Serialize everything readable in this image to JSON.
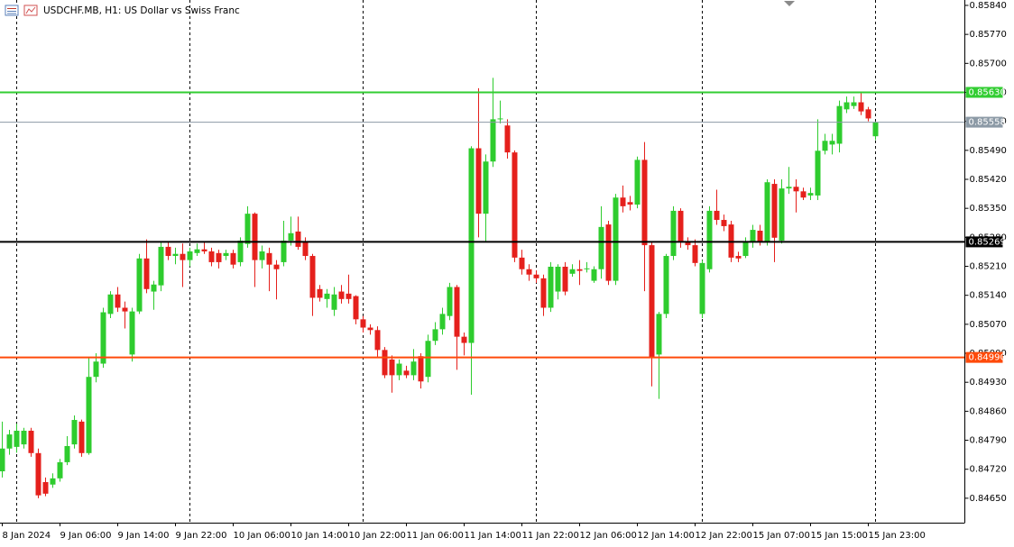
{
  "chart_data": {
    "type": "candlestick",
    "title": "USDCHF.MB, H1:  US Dollar vs Swiss Franc",
    "up_color": "#2ecc2e",
    "down_color": "#e5201c",
    "categories": [
      "8 Jan 2024",
      null,
      null,
      null,
      null,
      null,
      null,
      null,
      "9 Jan 06:00",
      null,
      null,
      null,
      null,
      null,
      null,
      null,
      "9 Jan 14:00",
      null,
      null,
      null,
      null,
      null,
      null,
      null,
      "9 Jan 22:00",
      null,
      null,
      null,
      null,
      null,
      null,
      null,
      "10 Jan 06:00",
      null,
      null,
      null,
      null,
      null,
      null,
      null,
      "10 Jan 14:00",
      null,
      null,
      null,
      null,
      null,
      null,
      null,
      "10 Jan 22:00",
      null,
      null,
      null,
      null,
      null,
      null,
      null,
      "11 Jan 06:00",
      null,
      null,
      null,
      null,
      null,
      null,
      null,
      "11 Jan 14:00",
      null,
      null,
      null,
      null,
      null,
      null,
      null,
      "11 Jan 22:00",
      null,
      null,
      null,
      null,
      null,
      null,
      null,
      "12 Jan 06:00",
      null,
      null,
      null,
      null,
      null,
      null,
      null,
      "12 Jan 14:00",
      null,
      null,
      null,
      null,
      null,
      null,
      null,
      "12 Jan 22:00",
      null,
      null,
      null,
      null,
      null,
      null,
      null,
      "15 Jan 07:00",
      null,
      null,
      null,
      null,
      null,
      null,
      null,
      "15 Jan 15:00",
      null,
      null,
      null,
      null,
      null,
      null,
      null,
      "15 Jan 23:00",
      null
    ],
    "open": [
      0.84715,
      0.8477,
      0.84774,
      0.8478,
      0.84813,
      0.84759,
      0.84689,
      0.84683,
      0.84698,
      0.84737,
      0.8478,
      0.84835,
      0.84759,
      0.84943,
      0.84975,
      0.85095,
      0.85142,
      0.8511,
      0.84997,
      0.85101,
      0.85229,
      0.85149,
      0.85164,
      0.85257,
      0.85235,
      0.8524,
      0.85225,
      0.85242,
      0.85251,
      0.85246,
      0.85242,
      0.85235,
      0.85242,
      0.8522,
      0.85264,
      0.85337,
      0.85225,
      0.85242,
      0.85214,
      0.8522,
      0.85272,
      0.85294,
      0.85268,
      0.85235,
      0.85155,
      0.85131,
      0.85105,
      0.85149,
      0.85144,
      0.85138,
      0.85082,
      0.85062,
      0.85056,
      0.85008,
      0.84985,
      0.84947,
      0.84958,
      0.84947,
      0.84993,
      0.84943,
      0.8503,
      0.85058,
      0.8509,
      0.8516,
      0.8504,
      0.85025,
      0.85495,
      0.85337,
      0.85463,
      0.85565,
      0.8555,
      0.85485,
      0.85231,
      0.85203,
      0.8519,
      0.85181,
      0.8511,
      0.85149,
      0.85209,
      0.85192,
      0.85203,
      0.85203,
      0.85175,
      0.85203,
      0.85311,
      0.85175,
      0.85376,
      0.85365,
      0.85359,
      0.85467,
      0.85261,
      0.84997,
      0.85095,
      0.85235,
      0.85344,
      0.85268,
      0.85261,
      0.85095,
      0.85203,
      0.85344,
      0.85322,
      0.85311,
      0.85235,
      0.85235,
      0.85268,
      0.85296,
      0.85268,
      0.85409,
      0.85272,
      0.85398,
      0.85402,
      0.85391,
      0.85381,
      0.85381,
      0.85489,
      0.85504,
      0.85506,
      0.85589,
      0.85597,
      0.85606,
      0.85589,
      0.85524
    ],
    "high": [
      0.84835,
      0.84815,
      0.8483,
      0.8482,
      0.8482,
      0.8477,
      0.847,
      0.8471,
      0.84745,
      0.848,
      0.8485,
      0.8484,
      0.8499,
      0.85,
      0.8511,
      0.8515,
      0.8516,
      0.85125,
      0.8511,
      0.8524,
      0.85275,
      0.85175,
      0.8527,
      0.8527,
      0.85255,
      0.85265,
      0.85255,
      0.85265,
      0.8527,
      0.85255,
      0.8525,
      0.8525,
      0.8525,
      0.8528,
      0.85355,
      0.8534,
      0.8526,
      0.85255,
      0.85225,
      0.8532,
      0.8533,
      0.8533,
      0.8528,
      0.8524,
      0.85165,
      0.85155,
      0.8516,
      0.85165,
      0.8519,
      0.8514,
      0.8509,
      0.8507,
      0.85065,
      0.85015,
      0.84995,
      0.84985,
      0.8497,
      0.8501,
      0.85,
      0.85045,
      0.85075,
      0.8511,
      0.8517,
      0.85165,
      0.8505,
      0.855,
      0.8564,
      0.8548,
      0.85665,
      0.8561,
      0.85565,
      0.8549,
      0.8525,
      0.85215,
      0.852,
      0.8519,
      0.8522,
      0.85215,
      0.8522,
      0.85215,
      0.85225,
      0.8522,
      0.8521,
      0.85355,
      0.8532,
      0.85385,
      0.85405,
      0.8538,
      0.85475,
      0.8551,
      0.8527,
      0.851,
      0.8524,
      0.85355,
      0.8535,
      0.8528,
      0.85275,
      0.85225,
      0.85355,
      0.85395,
      0.85335,
      0.8532,
      0.85245,
      0.8528,
      0.8531,
      0.8531,
      0.8542,
      0.8542,
      0.8542,
      0.8545,
      0.8542,
      0.854,
      0.854,
      0.85565,
      0.8553,
      0.8553,
      0.8561,
      0.8562,
      0.8562,
      0.8563,
      0.85595,
      0.8556
    ],
    "low": [
      0.847,
      0.84755,
      0.8476,
      0.8477,
      0.8475,
      0.8465,
      0.84655,
      0.84675,
      0.8469,
      0.8473,
      0.8477,
      0.8475,
      0.84755,
      0.8493,
      0.84965,
      0.85085,
      0.851,
      0.8506,
      0.8498,
      0.85095,
      0.85145,
      0.85105,
      0.8515,
      0.85225,
      0.85215,
      0.8516,
      0.8521,
      0.85235,
      0.8524,
      0.8521,
      0.85205,
      0.85225,
      0.85205,
      0.8521,
      0.85255,
      0.8516,
      0.85205,
      0.8515,
      0.8513,
      0.8521,
      0.8526,
      0.8525,
      0.85225,
      0.8509,
      0.85125,
      0.8511,
      0.8509,
      0.8512,
      0.8512,
      0.8507,
      0.8505,
      0.85045,
      0.8499,
      0.8494,
      0.84905,
      0.84935,
      0.8494,
      0.84935,
      0.84915,
      0.8493,
      0.8502,
      0.85045,
      0.8508,
      0.8496,
      0.84995,
      0.849,
      0.8528,
      0.8527,
      0.8545,
      0.85555,
      0.8547,
      0.8522,
      0.8519,
      0.85175,
      0.8517,
      0.8509,
      0.851,
      0.8513,
      0.8514,
      0.85185,
      0.85165,
      0.85195,
      0.8517,
      0.8518,
      0.85165,
      0.85165,
      0.8534,
      0.85345,
      0.8535,
      0.8515,
      0.8492,
      0.8489,
      0.85085,
      0.85225,
      0.85255,
      0.8525,
      0.8521,
      0.85085,
      0.85195,
      0.8531,
      0.85295,
      0.8522,
      0.8522,
      0.8523,
      0.85255,
      0.8526,
      0.8526,
      0.8522,
      0.85265,
      0.85385,
      0.8534,
      0.8537,
      0.8537,
      0.8537,
      0.8548,
      0.8548,
      0.85485,
      0.8558,
      0.8559,
      0.85575,
      0.8556,
      0.85515
    ],
    "close": [
      0.8477,
      0.84804,
      0.84813,
      0.84813,
      0.84759,
      0.84657,
      0.84661,
      0.84698,
      0.84737,
      0.84776,
      0.84839,
      0.84759,
      0.84943,
      0.8498,
      0.85099,
      0.85142,
      0.8511,
      0.85101,
      0.85101,
      0.85229,
      0.85155,
      0.85166,
      0.85257,
      0.85235,
      0.8524,
      0.85225,
      0.85246,
      0.85251,
      0.85246,
      0.8522,
      0.8522,
      0.85242,
      0.85214,
      0.85272,
      0.85337,
      0.85225,
      0.85246,
      0.85214,
      0.85203,
      0.85272,
      0.8529,
      0.85257,
      0.85235,
      0.85134,
      0.85134,
      0.85144,
      0.85142,
      0.85131,
      0.85131,
      0.85082,
      0.85062,
      0.85056,
      0.85008,
      0.84947,
      0.84947,
      0.84975,
      0.84947,
      0.8498,
      0.84932,
      0.8503,
      0.85058,
      0.85095,
      0.8516,
      0.8504,
      0.85025,
      0.85495,
      0.85337,
      0.85463,
      0.85565,
      0.85567,
      0.85485,
      0.85231,
      0.85203,
      0.8519,
      0.85181,
      0.8511,
      0.85209,
      0.85209,
      0.85149,
      0.85203,
      0.85199,
      0.85205,
      0.85203,
      0.85305,
      0.85175,
      0.85376,
      0.85355,
      0.85359,
      0.85467,
      0.85261,
      0.84991,
      0.85095,
      0.85235,
      0.85344,
      0.85268,
      0.85261,
      0.85218,
      0.85218,
      0.85344,
      0.85322,
      0.85307,
      0.85231,
      0.85229,
      0.85268,
      0.85298,
      0.85268,
      0.85413,
      0.85279,
      0.85398,
      0.85402,
      0.85391,
      0.85376,
      0.85387,
      0.85489,
      0.85513,
      0.85513,
      0.85597,
      0.85606,
      0.85606,
      0.85584,
      0.85567,
      0.85558
    ],
    "ylim": [
      0.84591,
      0.85853
    ],
    "yticks": [
      {
        "value": 0.8584,
        "label": "0.85840"
      },
      {
        "value": 0.8577,
        "label": "0.85770"
      },
      {
        "value": 0.857,
        "label": "0.85700"
      },
      {
        "value": 0.8563,
        "label": "0.85630"
      },
      {
        "value": 0.8556,
        "label": "0.85560"
      },
      {
        "value": 0.8549,
        "label": "0.85490"
      },
      {
        "value": 0.8542,
        "label": "0.85420"
      },
      {
        "value": 0.8535,
        "label": "0.85350"
      },
      {
        "value": 0.8528,
        "label": "0.85280"
      },
      {
        "value": 0.8521,
        "label": "0.85210"
      },
      {
        "value": 0.8514,
        "label": "0.85140"
      },
      {
        "value": 0.8507,
        "label": "0.85070"
      },
      {
        "value": 0.85,
        "label": "0.85000"
      },
      {
        "value": 0.8493,
        "label": "0.84930"
      },
      {
        "value": 0.8486,
        "label": "0.84860"
      },
      {
        "value": 0.8479,
        "label": "0.84790"
      },
      {
        "value": 0.8472,
        "label": "0.84720"
      },
      {
        "value": 0.8465,
        "label": "0.84650"
      }
    ],
    "levels": [
      {
        "value": 0.8563,
        "label": "0.85630",
        "color": "#32cd32",
        "width": 2
      },
      {
        "value": 0.85558,
        "label": "0.85558",
        "color": "#8c9aa6",
        "width": 1
      },
      {
        "value": 0.85269,
        "label": "0.85269",
        "color": "#000000",
        "width": 2
      },
      {
        "value": 0.8499,
        "label": "0.84990",
        "color": "#ff4a0a",
        "width": 2
      }
    ]
  }
}
